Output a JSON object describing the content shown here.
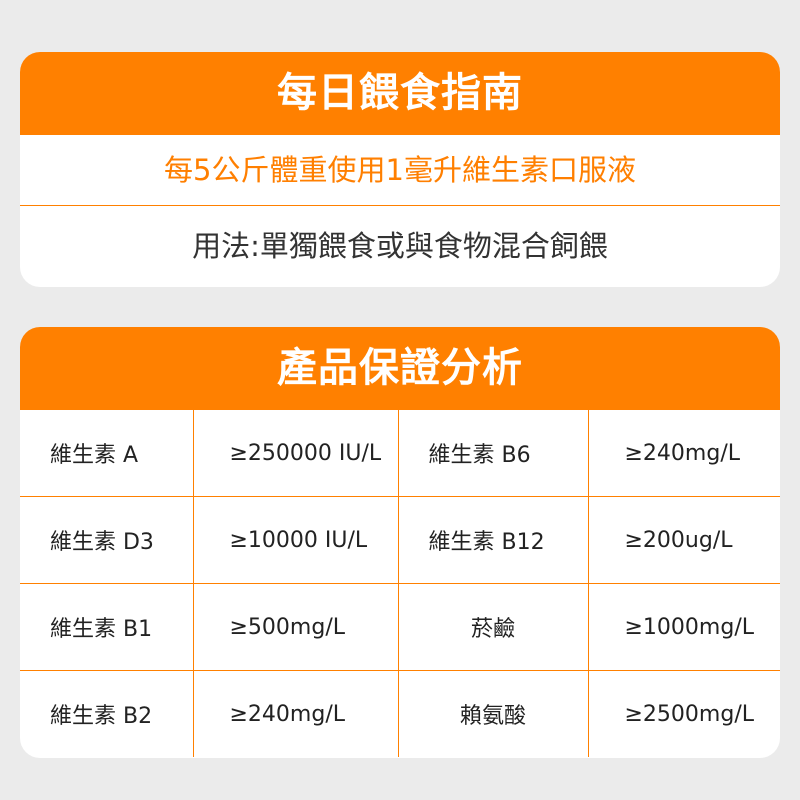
{
  "guide": {
    "title": "每日餵食指南",
    "dosage": "每5公斤體重使用1毫升維生素口服液",
    "usage": "用法:單獨餵食或與食物混合飼餵"
  },
  "analysis": {
    "title": "產品保證分析",
    "rows": [
      {
        "name1": "維生素 A",
        "value1": "≥250000 IU/L",
        "name2": "維生素 B6",
        "value2": "≥240mg/L"
      },
      {
        "name1": "維生素 D3",
        "value1": "≥10000 IU/L",
        "name2": "維生素 B12",
        "value2": "≥200ug/L"
      },
      {
        "name1": "維生素 B1",
        "value1": "≥500mg/L",
        "name2": "菸鹼",
        "value2": "≥1000mg/L"
      },
      {
        "name1": "維生素 B2",
        "value1": "≥240mg/L",
        "name2": "賴氨酸",
        "value2": "≥2500mg/L"
      }
    ]
  },
  "colors": {
    "accent": "#ff8000",
    "background": "#ebebeb"
  }
}
